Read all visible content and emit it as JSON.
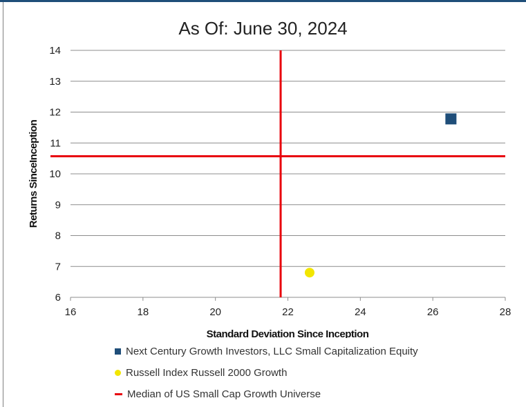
{
  "chart_data": {
    "type": "scatter",
    "title": "As Of: June 30, 2024",
    "xlabel": "Standard Deviation Since Inception",
    "ylabel": "Returns SinceInception",
    "xlim": [
      16,
      28
    ],
    "ylim": [
      6,
      14
    ],
    "x_ticks": [
      "16",
      "18",
      "20",
      "22",
      "24",
      "26",
      "28"
    ],
    "y_ticks": [
      "6",
      "7",
      "8",
      "9",
      "10",
      "11",
      "12",
      "13",
      "14"
    ],
    "grid": "horizontal",
    "legend_position": "bottom",
    "series": [
      {
        "name": "Next Century Growth Investors, LLC Small Capitalization Equity",
        "marker": "square",
        "color": "#1f4e79",
        "x": 26.5,
        "y": 11.78
      },
      {
        "name": "Russell Index Russell 2000 Growth",
        "marker": "circle",
        "color": "#f2e600",
        "x": 22.6,
        "y": 6.8
      }
    ],
    "median": {
      "name": "Median of US Small Cap Growth Universe",
      "color": "#e8000b",
      "x": 21.8,
      "y": 10.57
    }
  }
}
